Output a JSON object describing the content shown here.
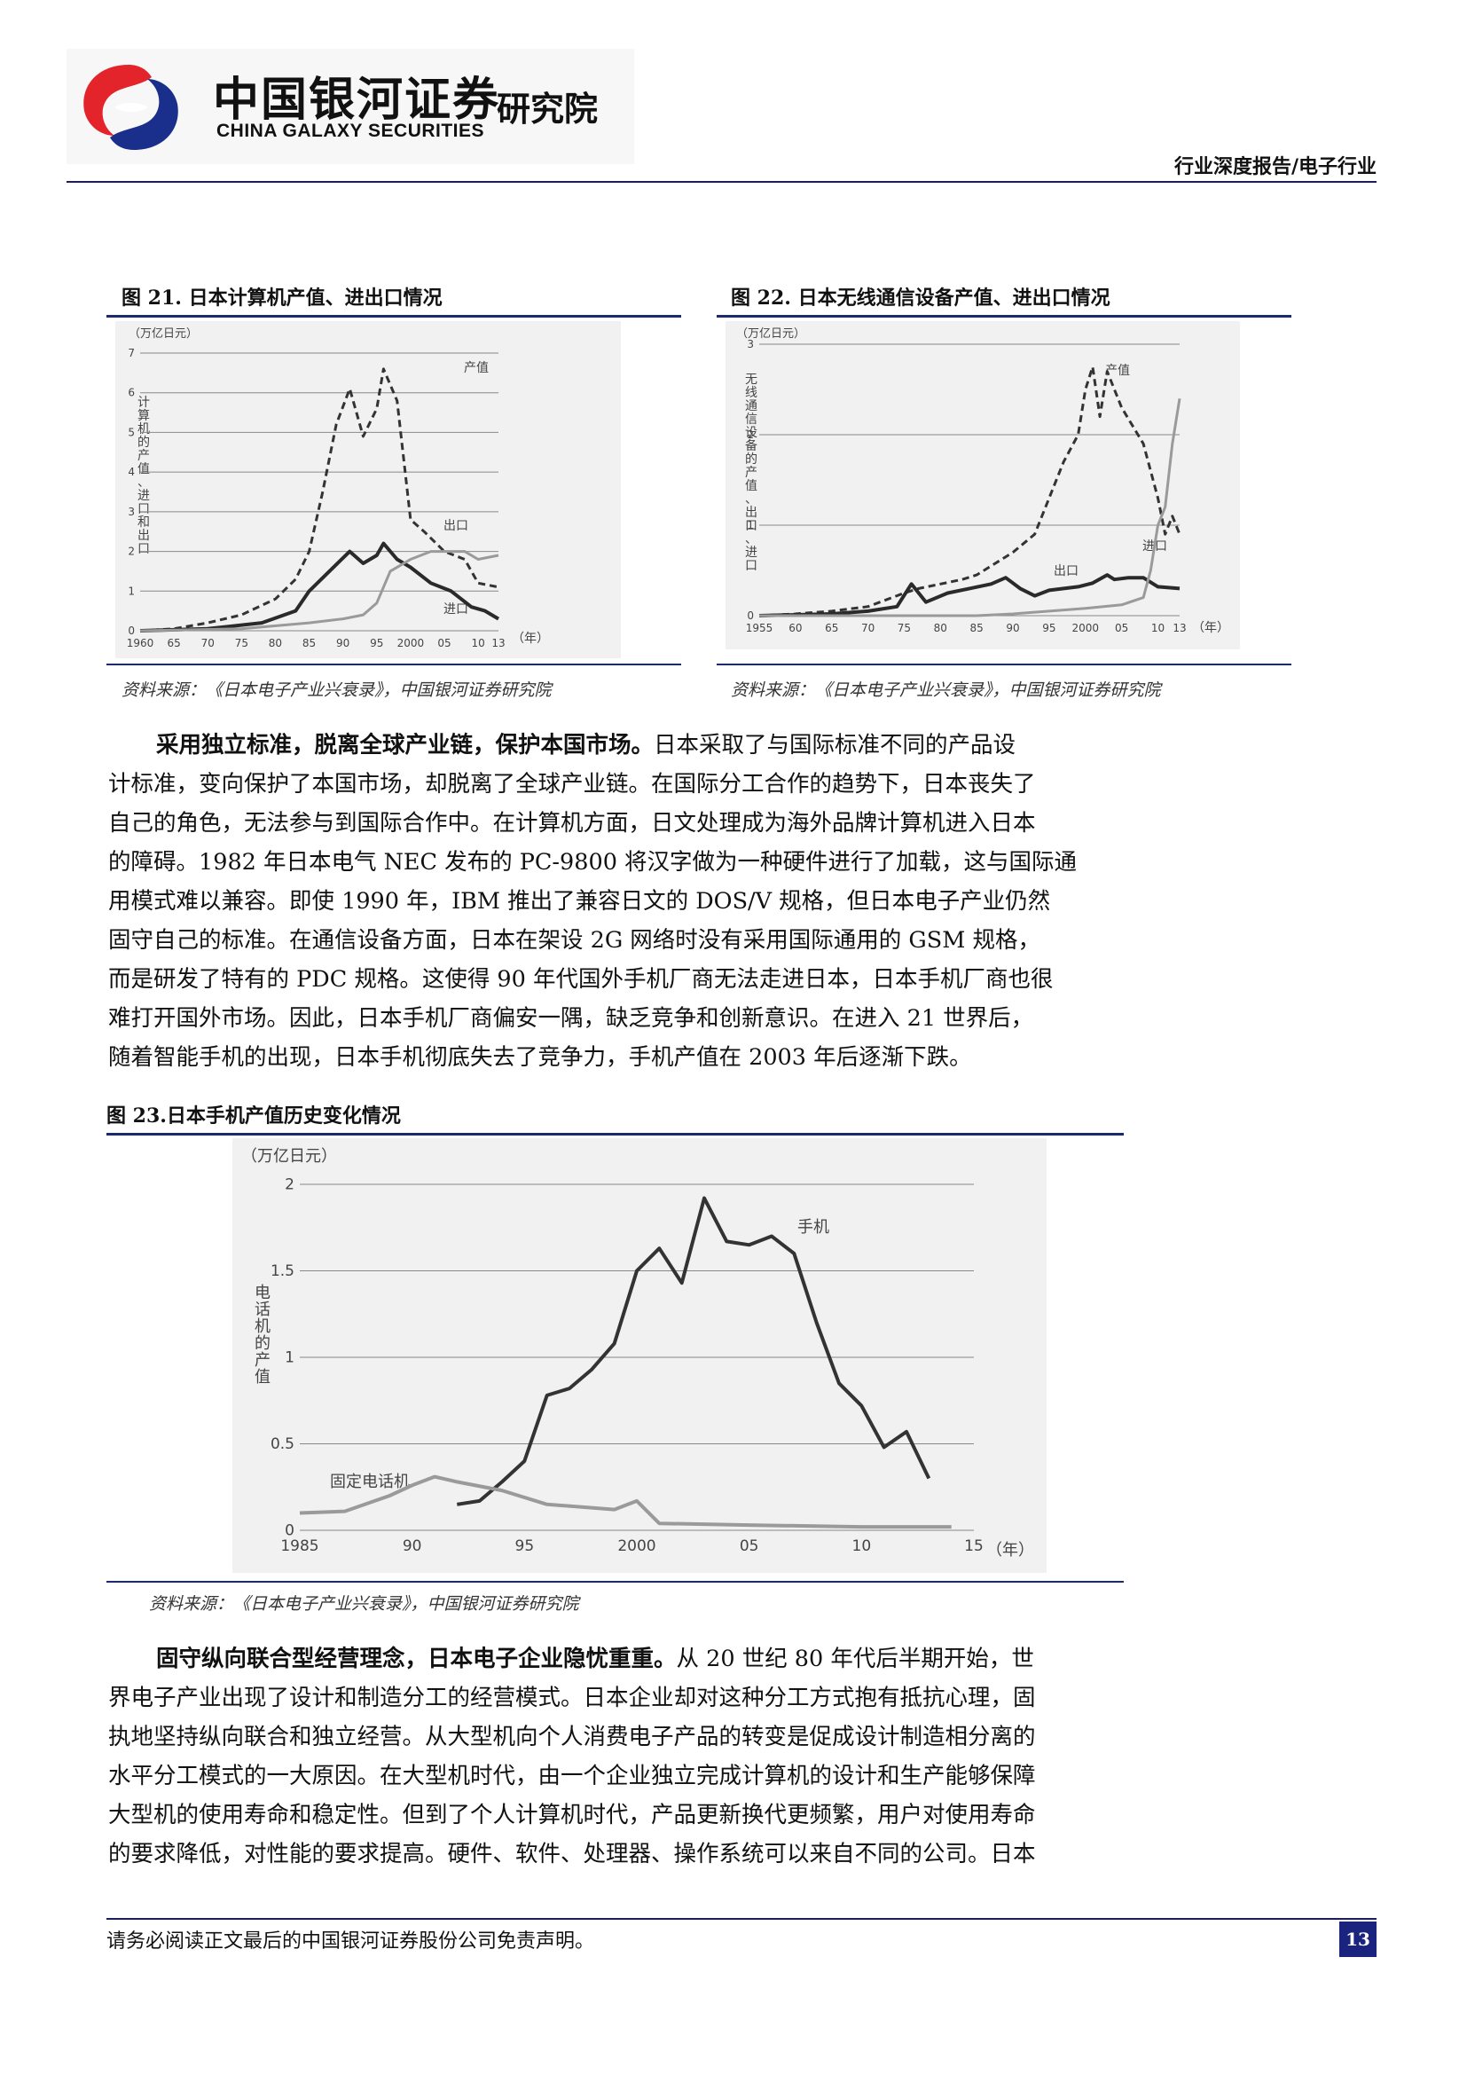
{
  "header": {
    "brand_cn": "中国银河证券",
    "brand_en": "CHINA GALAXY SECURITIES",
    "brand_sub": "研究院",
    "report_type": "行业深度报告/电子行业"
  },
  "figures": [
    {
      "caption": "图 21. 日本计算机产值、进出口情况",
      "source": "资料来源：《日本电子产业兴衰录》，中国银河证券研究院",
      "unit": "（万亿日元）",
      "ylabel": "计算机的产值、进口和出口",
      "year_suffix": "（年）",
      "labels": {
        "production": "产值",
        "export": "出口",
        "import": "进口"
      }
    },
    {
      "caption": "图 22. 日本无线通信设备产值、进出口情况",
      "source": "资料来源：《日本电子产业兴衰录》，中国银河证券研究院",
      "unit": "（万亿日元）",
      "ylabel": "无线通信设备的产值、出口、进口",
      "year_suffix": "（年）",
      "labels": {
        "production": "产值",
        "export": "出口",
        "import": "进口"
      }
    },
    {
      "caption": "图 23.日本手机产值历史变化情况",
      "source": "资料来源：《日本电子产业兴衰录》，中国银河证券研究院",
      "unit": "（万亿日元）",
      "ylabel": "电话机的产值",
      "year_suffix": "（年）",
      "labels": {
        "mobile": "手机",
        "fixed": "固定电话机"
      }
    }
  ],
  "paragraphs": [
    {
      "lead": "采用独立标准，脱离全球产业链，保护本国市场。",
      "lines": [
        "日本采取了与国际标准不同的产品设",
        "计标准，变向保护了本国市场，却脱离了全球产业链。在国际分工合作的趋势下，日本丧失了",
        "自己的角色，无法参与到国际合作中。在计算机方面，日文处理成为海外品牌计算机进入日本",
        "的障碍。1982 年日本电气 NEC 发布的 PC-9800 将汉字做为一种硬件进行了加载，这与国际通",
        "用模式难以兼容。即使 1990 年，IBM 推出了兼容日文的 DOS/V 规格，但日本电子产业仍然",
        "固守自己的标准。在通信设备方面，日本在架设 2G 网络时没有采用国际通用的 GSM 规格，",
        "而是研发了特有的 PDC 规格。这使得 90 年代国外手机厂商无法走进日本，日本手机厂商也很",
        "难打开国外市场。因此，日本手机厂商偏安一隅，缺乏竞争和创新意识。在进入 21 世界后，",
        "随着智能手机的出现，日本手机彻底失去了竞争力，手机产值在 2003 年后逐渐下跌。"
      ]
    },
    {
      "lead": "固守纵向联合型经营理念，日本电子企业隐忧重重。",
      "lines": [
        "从 20 世纪 80 年代后半期开始，世",
        "界电子产业出现了设计和制造分工的经营模式。日本企业却对这种分工方式抱有抵抗心理，固",
        "执地坚持纵向联合和独立经营。从大型机向个人消费电子产品的转变是促成设计制造相分离的",
        "水平分工模式的一大原因。在大型机时代，由一个企业独立完成计算机的设计和生产能够保障",
        "大型机的使用寿命和稳定性。但到了个人计算机时代，产品更新换代更频繁，用户对使用寿命",
        "的要求降低，对性能的要求提高。硬件、软件、处理器、操作系统可以来自不同的公司。日本"
      ]
    }
  ],
  "footer": {
    "disclaimer": "请务必阅读正文最后的中国银河证券股份公司免责声明。",
    "page": "13"
  },
  "chart_data": [
    {
      "type": "line",
      "ylim": [
        0,
        7
      ],
      "yticks": [
        "0",
        "1",
        "2",
        "3",
        "4",
        "5",
        "6",
        "7"
      ],
      "xticks": [
        "1960",
        "65",
        "70",
        "75",
        "80",
        "85",
        "90",
        "95",
        "2000",
        "05",
        "10",
        "13"
      ],
      "series": [
        {
          "name": "产值",
          "style": "dashed",
          "x": [
            1960,
            1965,
            1970,
            1975,
            1980,
            1983,
            1985,
            1987,
            1989,
            1991,
            1993,
            1995,
            1996,
            1998,
            2000,
            2002,
            2005,
            2008,
            2010,
            2013
          ],
          "values": [
            0.0,
            0.05,
            0.2,
            0.4,
            0.8,
            1.3,
            2.0,
            3.5,
            5.2,
            6.1,
            4.9,
            5.6,
            6.6,
            5.8,
            2.8,
            2.5,
            2.0,
            1.8,
            1.2,
            1.1
          ]
        },
        {
          "name": "出口",
          "x": [
            1960,
            1970,
            1978,
            1983,
            1985,
            1988,
            1991,
            1993,
            1995,
            1996,
            1998,
            2000,
            2003,
            2006,
            2009,
            2011,
            2013
          ],
          "values": [
            0.0,
            0.05,
            0.2,
            0.5,
            1.0,
            1.5,
            2.0,
            1.7,
            1.9,
            2.2,
            1.8,
            1.6,
            1.2,
            1.0,
            0.6,
            0.5,
            0.3
          ]
        },
        {
          "name": "进口",
          "x": [
            1960,
            1975,
            1985,
            1990,
            1993,
            1995,
            1997,
            2000,
            2003,
            2005,
            2008,
            2010,
            2013
          ],
          "values": [
            0.0,
            0.05,
            0.2,
            0.3,
            0.4,
            0.7,
            1.5,
            1.8,
            2.0,
            2.0,
            2.0,
            1.8,
            1.9
          ]
        }
      ]
    },
    {
      "type": "line",
      "ylim": [
        0,
        3
      ],
      "yticks": [
        "0",
        "1",
        "2",
        "3"
      ],
      "xticks": [
        "1955",
        "60",
        "65",
        "70",
        "75",
        "80",
        "85",
        "90",
        "95",
        "2000",
        "05",
        "10",
        "13"
      ],
      "series": [
        {
          "name": "产值",
          "style": "dashed",
          "x": [
            1955,
            1960,
            1965,
            1970,
            1975,
            1977,
            1980,
            1983,
            1985,
            1988,
            1990,
            1993,
            1995,
            1997,
            1999,
            2000,
            2001,
            2002,
            2003,
            2005,
            2008,
            2010,
            2011,
            2012,
            2013
          ],
          "values": [
            0.0,
            0.02,
            0.05,
            0.1,
            0.25,
            0.3,
            0.35,
            0.4,
            0.45,
            0.6,
            0.7,
            0.9,
            1.3,
            1.7,
            2.0,
            2.5,
            2.75,
            2.2,
            2.7,
            2.3,
            1.9,
            1.3,
            0.9,
            1.1,
            0.9
          ]
        },
        {
          "name": "出口",
          "x": [
            1955,
            1965,
            1970,
            1974,
            1976,
            1978,
            1981,
            1984,
            1987,
            1989,
            1991,
            1993,
            1995,
            1997,
            1999,
            2001,
            2003,
            2004,
            2006,
            2008,
            2010,
            2013
          ],
          "values": [
            0.0,
            0.02,
            0.05,
            0.1,
            0.35,
            0.15,
            0.25,
            0.3,
            0.35,
            0.42,
            0.3,
            0.22,
            0.28,
            0.3,
            0.32,
            0.36,
            0.45,
            0.4,
            0.42,
            0.42,
            0.32,
            0.3
          ]
        },
        {
          "name": "进口",
          "x": [
            1955,
            1985,
            1990,
            1995,
            2000,
            2005,
            2008,
            2009,
            2010,
            2011,
            2012,
            2013
          ],
          "values": [
            0.0,
            0.0,
            0.02,
            0.05,
            0.08,
            0.12,
            0.2,
            0.5,
            1.0,
            1.2,
            1.9,
            2.4
          ]
        }
      ]
    },
    {
      "type": "line",
      "ylim": [
        0,
        2
      ],
      "yticks": [
        "0",
        "0.5",
        "1",
        "1.5",
        "2"
      ],
      "xticks": [
        "1985",
        "90",
        "95",
        "2000",
        "05",
        "10",
        "15"
      ],
      "series": [
        {
          "name": "手机",
          "x": [
            1992,
            1993,
            1994,
            1995,
            1996,
            1997,
            1998,
            1999,
            2000,
            2001,
            2002,
            2003,
            2004,
            2005,
            2006,
            2007,
            2008,
            2009,
            2010,
            2011,
            2012,
            2013
          ],
          "values": [
            0.15,
            0.17,
            0.28,
            0.4,
            0.78,
            0.82,
            0.93,
            1.08,
            1.5,
            1.63,
            1.43,
            1.92,
            1.67,
            1.65,
            1.7,
            1.6,
            1.2,
            0.85,
            0.72,
            0.48,
            0.57,
            0.3
          ]
        },
        {
          "name": "固定电话机",
          "x": [
            1985,
            1987,
            1989,
            1990,
            1991,
            1992,
            1994,
            1996,
            1998,
            1999,
            2000,
            2001,
            2005,
            2010,
            2014
          ],
          "values": [
            0.1,
            0.11,
            0.2,
            0.26,
            0.31,
            0.28,
            0.23,
            0.15,
            0.13,
            0.12,
            0.17,
            0.04,
            0.03,
            0.02,
            0.02
          ]
        }
      ]
    }
  ]
}
